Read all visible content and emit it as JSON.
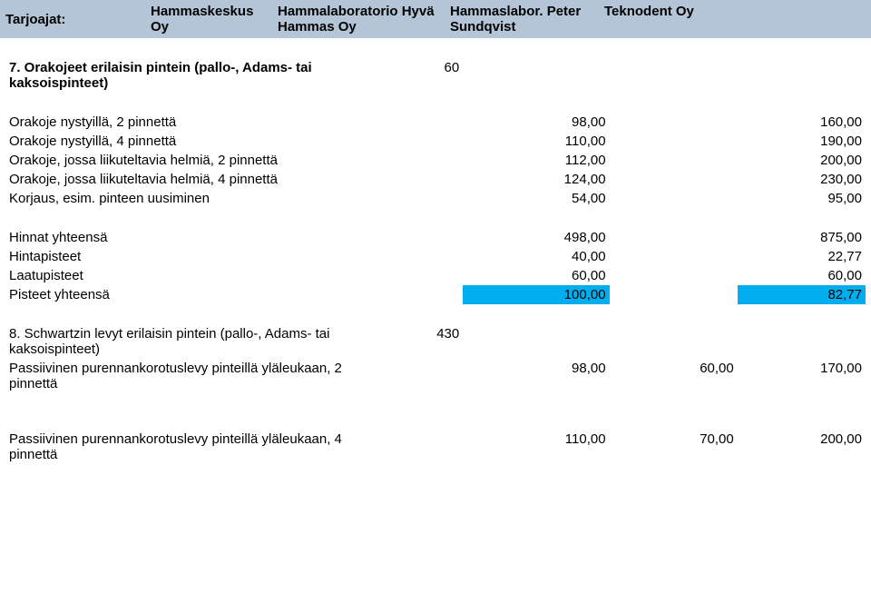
{
  "header": {
    "label": "Tarjoajat:",
    "cols": [
      "Hammaskeskus Oy",
      "Hammalaboratorio Hyvä Hammas Oy",
      "Hammaslabor. Peter Sundqvist",
      "Teknodent Oy"
    ]
  },
  "section7": {
    "title": "7. Orakojeet erilaisin pintein (pallo-, Adams- tai kaksoispinteet)",
    "qty": "60",
    "rows": [
      {
        "label": "Orakoje nystyillä, 2 pinnettä",
        "v1": "98,00",
        "v3": "160,00"
      },
      {
        "label": "Orakoje nystyillä, 4 pinnettä",
        "v1": "110,00",
        "v3": "190,00"
      },
      {
        "label": "Orakoje, jossa liikuteltavia helmiä, 2 pinnettä",
        "v1": "112,00",
        "v3": "200,00"
      },
      {
        "label": "Orakoje, jossa liikuteltavia helmiä, 4 pinnettä",
        "v1": "124,00",
        "v3": "230,00"
      },
      {
        "label": "Korjaus, esim. pinteen uusiminen",
        "v1": "54,00",
        "v3": "95,00"
      }
    ],
    "totals": [
      {
        "label": "Hinnat yhteensä",
        "v1": "498,00",
        "v3": "875,00"
      },
      {
        "label": "Hintapisteet",
        "v1": "40,00",
        "v3": "22,77"
      },
      {
        "label": "Laatupisteet",
        "v1": "60,00",
        "v3": "60,00"
      },
      {
        "label": "Pisteet yhteensä",
        "v1": "100,00",
        "v3": "82,77",
        "highlight": true
      }
    ]
  },
  "section8": {
    "title": "8. Schwartzin levyt erilaisin pintein (pallo-, Adams- tai kaksoispinteet)",
    "qty": "430",
    "rows": [
      {
        "label": "Passiivinen purennankorotuslevy pinteillä yläleukaan, 2 pinnettä",
        "v1": "98,00",
        "v2": "60,00",
        "v3": "170,00"
      },
      {
        "label": "Passiivinen purennankorotuslevy pinteillä yläleukaan, 4 pinnettä",
        "v1": "110,00",
        "v2": "70,00",
        "v3": "200,00"
      }
    ]
  },
  "colors": {
    "header_bg": "#b5c5d8",
    "highlight_bg": "#00aeef",
    "text": "#000000",
    "background": "#ffffff"
  },
  "font": {
    "family": "Arial",
    "size_pt": 11
  }
}
